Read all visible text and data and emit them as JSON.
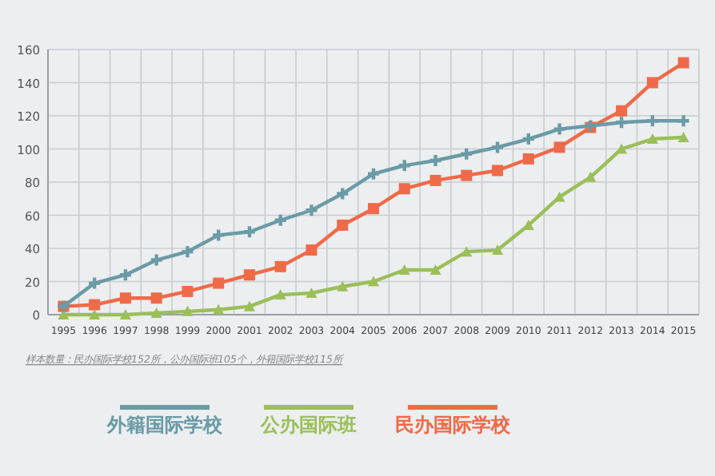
{
  "chart_data": {
    "type": "line",
    "categories": [
      "1995",
      "1996",
      "1997",
      "1998",
      "1999",
      "2000",
      "2001",
      "2002",
      "2003",
      "2004",
      "2005",
      "2006",
      "2007",
      "2008",
      "2009",
      "2010",
      "2011",
      "2012",
      "2013",
      "2014",
      "2015"
    ],
    "series": [
      {
        "name": "外籍国际学校",
        "color": "#6a9ba6",
        "marker": "cross",
        "values": [
          5,
          19,
          24,
          33,
          38,
          48,
          50,
          57,
          63,
          73,
          85,
          90,
          93,
          97,
          101,
          106,
          112,
          114,
          116,
          117,
          117
        ]
      },
      {
        "name": "公办国际班",
        "color": "#9bbf59",
        "marker": "triangle",
        "values": [
          0,
          0,
          0,
          1,
          2,
          3,
          5,
          12,
          13,
          17,
          20,
          27,
          27,
          38,
          39,
          54,
          71,
          83,
          100,
          106,
          107
        ]
      },
      {
        "name": "民办国际学校",
        "color": "#ef6a48",
        "marker": "square",
        "values": [
          5,
          6,
          10,
          10,
          14,
          19,
          24,
          29,
          39,
          54,
          64,
          76,
          81,
          84,
          87,
          94,
          101,
          113,
          123,
          140,
          152
        ]
      }
    ],
    "ylim": [
      0,
      160
    ],
    "yticks": [
      0,
      20,
      40,
      60,
      80,
      100,
      120,
      140,
      160
    ],
    "grid": true,
    "legend": "bottom",
    "line_style": "solid",
    "annotations": [
      "样本数量：民办国际学校152所，公办国际班105个，外籍国际学校115所"
    ]
  }
}
